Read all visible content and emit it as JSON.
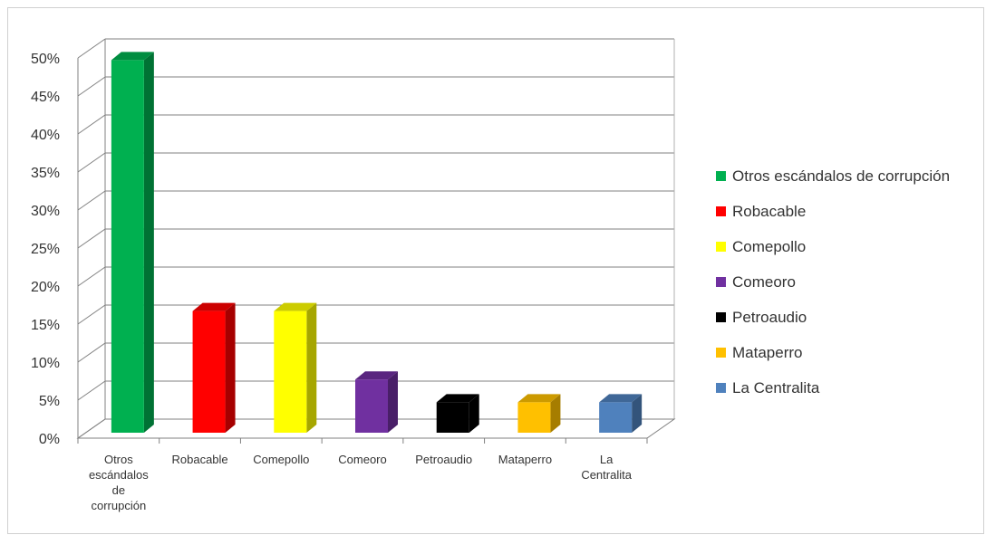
{
  "chart_data": {
    "type": "bar",
    "categories": [
      [
        "Otros",
        "escándalos",
        "de",
        "corrupción"
      ],
      [
        "Robacable"
      ],
      [
        "Comepollo"
      ],
      [
        "Comeoro"
      ],
      [
        "Petroaudio"
      ],
      [
        "Mataperro"
      ],
      [
        "La",
        "Centralita"
      ]
    ],
    "values": [
      49,
      16,
      16,
      7,
      4,
      4,
      4
    ],
    "ylim": [
      0,
      50
    ],
    "ytick_step": 5,
    "ytick_format": "percent",
    "grid": true,
    "legend_position": "right",
    "legend": [
      {
        "label": "Otros escándalos de corrupción",
        "color": "#00b050"
      },
      {
        "label": "Robacable",
        "color": "#ff0000"
      },
      {
        "label": "Comepollo",
        "color": "#ffff00"
      },
      {
        "label": "Comeoro",
        "color": "#7030a0"
      },
      {
        "label": "Petroaudio",
        "color": "#000000"
      },
      {
        "label": "Mataperro",
        "color": "#ffc000"
      },
      {
        "label": "La Centralita",
        "color": "#4f81bd"
      }
    ],
    "bar_colors": [
      "#00b050",
      "#ff0000",
      "#ffff00",
      "#7030a0",
      "#000000",
      "#ffc000",
      "#4f81bd"
    ]
  }
}
